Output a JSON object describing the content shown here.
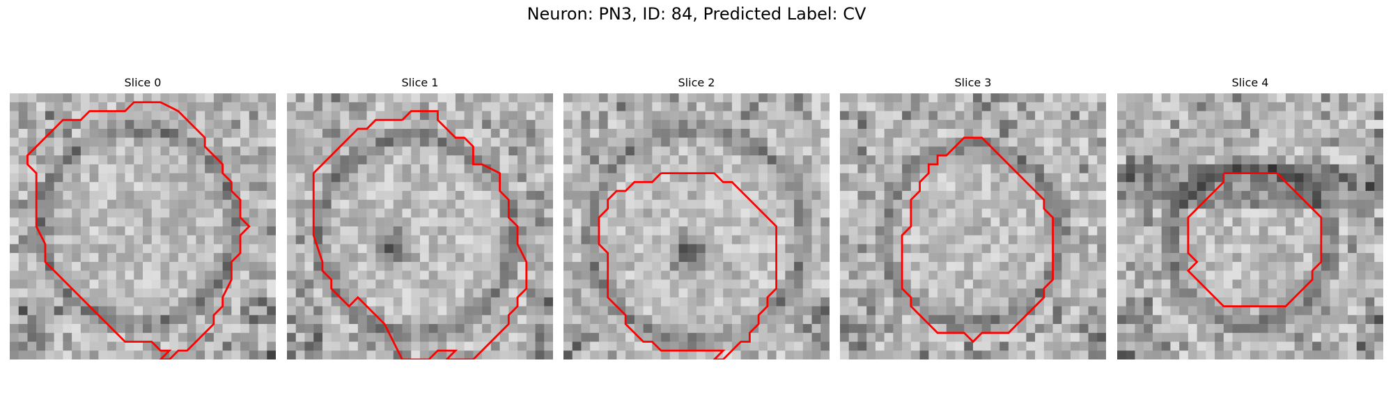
{
  "figure": {
    "title": "Neuron: PN3, ID: 84, Predicted Label: CV"
  },
  "colors": {
    "contour": "#ff0000"
  },
  "slices": [
    {
      "title": "Slice 0"
    },
    {
      "title": "Slice 1"
    },
    {
      "title": "Slice 2"
    },
    {
      "title": "Slice 3"
    },
    {
      "title": "Slice 4"
    }
  ]
}
